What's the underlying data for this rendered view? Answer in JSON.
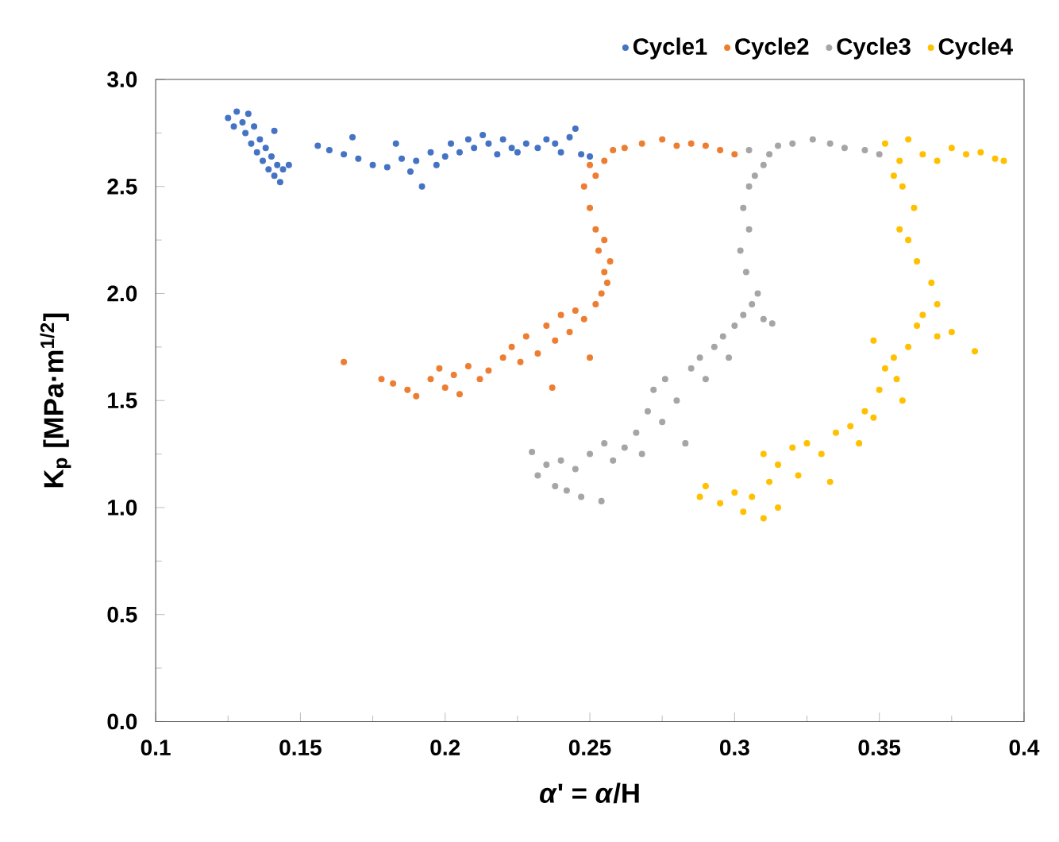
{
  "chart_data": {
    "type": "scatter",
    "xlabel": "*α*' = *α*/H",
    "ylabel": "K$_{p}$ [MPa·m$^{1/2}$]",
    "xlim": [
      0.1,
      0.4
    ],
    "ylim": [
      0,
      3.0
    ],
    "xticks": [
      0.1,
      0.15,
      0.2,
      0.25,
      0.3,
      0.35,
      0.4
    ],
    "yticks": [
      {
        "value": 0,
        "label": "0.0"
      },
      {
        "value": 0.5,
        "label": "0.5"
      },
      {
        "value": 1.0,
        "label": "1.0"
      },
      {
        "value": 1.5,
        "label": "1.5"
      },
      {
        "value": 2.0,
        "label": "2.0"
      },
      {
        "value": 2.5,
        "label": "2.5"
      },
      {
        "value": 3.0,
        "label": "3.0"
      }
    ],
    "grid": false,
    "legend": "top right",
    "marker": "circle",
    "series": [
      {
        "name": "Cycle1",
        "color": "#4472c4",
        "x": [
          0.125,
          0.127,
          0.128,
          0.13,
          0.131,
          0.132,
          0.133,
          0.134,
          0.135,
          0.136,
          0.137,
          0.138,
          0.139,
          0.14,
          0.141,
          0.142,
          0.143,
          0.144,
          0.146,
          0.141,
          0.156,
          0.16,
          0.165,
          0.168,
          0.17,
          0.175,
          0.18,
          0.183,
          0.185,
          0.188,
          0.19,
          0.192,
          0.195,
          0.197,
          0.2,
          0.202,
          0.205,
          0.208,
          0.21,
          0.213,
          0.215,
          0.218,
          0.22,
          0.223,
          0.225,
          0.228,
          0.232,
          0.235,
          0.238,
          0.24,
          0.243,
          0.245,
          0.247,
          0.25
        ],
        "values": [
          2.82,
          2.78,
          2.85,
          2.8,
          2.75,
          2.84,
          2.7,
          2.78,
          2.66,
          2.72,
          2.62,
          2.68,
          2.58,
          2.64,
          2.55,
          2.6,
          2.52,
          2.58,
          2.6,
          2.76,
          2.69,
          2.67,
          2.65,
          2.73,
          2.63,
          2.6,
          2.59,
          2.7,
          2.63,
          2.57,
          2.62,
          2.5,
          2.66,
          2.6,
          2.64,
          2.7,
          2.66,
          2.72,
          2.68,
          2.74,
          2.7,
          2.65,
          2.72,
          2.68,
          2.66,
          2.7,
          2.68,
          2.72,
          2.7,
          2.66,
          2.73,
          2.77,
          2.65,
          2.64
        ]
      },
      {
        "name": "Cycle2",
        "color": "#ed7d31",
        "x": [
          0.165,
          0.178,
          0.182,
          0.187,
          0.19,
          0.195,
          0.198,
          0.2,
          0.203,
          0.205,
          0.208,
          0.212,
          0.215,
          0.22,
          0.223,
          0.226,
          0.228,
          0.232,
          0.235,
          0.237,
          0.238,
          0.24,
          0.243,
          0.245,
          0.248,
          0.25,
          0.252,
          0.254,
          0.255,
          0.256,
          0.253,
          0.252,
          0.255,
          0.25,
          0.248,
          0.252,
          0.25,
          0.255,
          0.258,
          0.262,
          0.268,
          0.275,
          0.28,
          0.285,
          0.29,
          0.295,
          0.3,
          0.257
        ],
        "values": [
          1.68,
          1.6,
          1.58,
          1.55,
          1.52,
          1.6,
          1.65,
          1.56,
          1.62,
          1.53,
          1.66,
          1.6,
          1.64,
          1.7,
          1.75,
          1.68,
          1.8,
          1.72,
          1.85,
          1.56,
          1.78,
          1.9,
          1.82,
          1.92,
          1.88,
          1.7,
          1.95,
          2.0,
          2.1,
          2.05,
          2.2,
          2.3,
          2.25,
          2.4,
          2.5,
          2.55,
          2.6,
          2.62,
          2.67,
          2.68,
          2.7,
          2.72,
          2.69,
          2.7,
          2.69,
          2.67,
          2.65,
          2.15
        ]
      },
      {
        "name": "Cycle3",
        "color": "#a5a5a5",
        "x": [
          0.23,
          0.232,
          0.235,
          0.238,
          0.24,
          0.242,
          0.245,
          0.247,
          0.25,
          0.254,
          0.255,
          0.258,
          0.262,
          0.266,
          0.268,
          0.27,
          0.272,
          0.275,
          0.276,
          0.28,
          0.283,
          0.285,
          0.288,
          0.29,
          0.293,
          0.296,
          0.298,
          0.3,
          0.303,
          0.306,
          0.31,
          0.313,
          0.308,
          0.304,
          0.302,
          0.305,
          0.303,
          0.305,
          0.307,
          0.31,
          0.312,
          0.305,
          0.315,
          0.32,
          0.327,
          0.333,
          0.338,
          0.345,
          0.35
        ],
        "values": [
          1.26,
          1.15,
          1.2,
          1.1,
          1.22,
          1.08,
          1.18,
          1.05,
          1.25,
          1.03,
          1.3,
          1.22,
          1.28,
          1.35,
          1.25,
          1.45,
          1.55,
          1.4,
          1.6,
          1.5,
          1.3,
          1.65,
          1.7,
          1.6,
          1.75,
          1.8,
          1.7,
          1.85,
          1.9,
          1.95,
          1.88,
          1.86,
          2.0,
          2.1,
          2.2,
          2.3,
          2.4,
          2.5,
          2.55,
          2.6,
          2.65,
          2.67,
          2.69,
          2.7,
          2.72,
          2.7,
          2.68,
          2.67,
          2.65
        ]
      },
      {
        "name": "Cycle4",
        "color": "#ffc000",
        "x": [
          0.288,
          0.29,
          0.295,
          0.3,
          0.303,
          0.306,
          0.31,
          0.312,
          0.315,
          0.31,
          0.315,
          0.32,
          0.322,
          0.325,
          0.33,
          0.333,
          0.335,
          0.34,
          0.343,
          0.345,
          0.348,
          0.35,
          0.352,
          0.348,
          0.355,
          0.356,
          0.358,
          0.36,
          0.363,
          0.37,
          0.375,
          0.383,
          0.365,
          0.37,
          0.368,
          0.363,
          0.36,
          0.357,
          0.362,
          0.358,
          0.355,
          0.357,
          0.352,
          0.36,
          0.365,
          0.37,
          0.375,
          0.38,
          0.385,
          0.39,
          0.393
        ],
        "values": [
          1.05,
          1.1,
          1.02,
          1.07,
          0.98,
          1.05,
          0.95,
          1.12,
          1.0,
          1.25,
          1.2,
          1.28,
          1.15,
          1.3,
          1.25,
          1.12,
          1.35,
          1.38,
          1.3,
          1.45,
          1.42,
          1.55,
          1.65,
          1.78,
          1.7,
          1.6,
          1.5,
          1.75,
          1.85,
          1.8,
          1.82,
          1.73,
          1.9,
          1.95,
          2.05,
          2.15,
          2.25,
          2.3,
          2.4,
          2.5,
          2.55,
          2.62,
          2.7,
          2.72,
          2.65,
          2.62,
          2.68,
          2.65,
          2.66,
          2.63,
          2.62
        ]
      }
    ]
  }
}
